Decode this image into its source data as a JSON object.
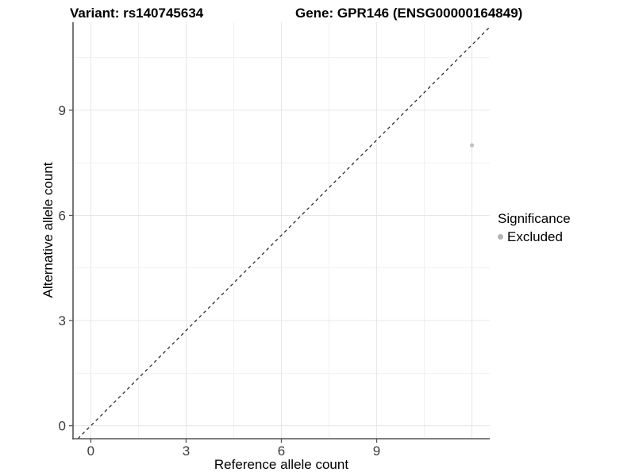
{
  "titles": {
    "variant": "Variant: rs140745634",
    "gene": "Gene: GPR146 (ENSG00000164849)"
  },
  "chart_data": {
    "type": "scatter",
    "xlabel": "Reference allele count",
    "ylabel": "Alternative allele count",
    "xlim": [
      -0.56,
      12.56
    ],
    "ylim": [
      -0.37,
      11.51
    ],
    "x_tick_labels": [
      "0",
      "3",
      "6",
      "9"
    ],
    "x_ticks": [
      0,
      3,
      6,
      9
    ],
    "y_tick_labels": [
      "0",
      "3",
      "6",
      "9"
    ],
    "y_ticks": [
      0,
      3,
      6,
      9
    ],
    "x_major_gridlines": [
      0,
      3,
      6,
      9,
      12
    ],
    "x_minor_gridlines": [
      1.5,
      4.5,
      7.5,
      10.5
    ],
    "y_major_gridlines": [
      0,
      3,
      6,
      9
    ],
    "y_minor_gridlines": [
      1.5,
      4.5,
      7.5,
      10.5
    ],
    "grid": true,
    "points": [
      {
        "x": 12,
        "y": 8,
        "series": "Excluded"
      }
    ],
    "abline": {
      "slope": 1,
      "intercept": 0,
      "style": "dashed"
    },
    "colors": {
      "point": "#c2c2c2",
      "legend_point": "#b3b3b3",
      "major_grid": "#e6e6e6",
      "minor_grid": "#f1f1f1",
      "axis_line": "#555555",
      "tick_label": "#3d3d3d",
      "abline": "#1a1a1a"
    }
  },
  "legend": {
    "title": "Significance",
    "position": "right",
    "items": [
      {
        "label": "Excluded",
        "color": "#b3b3b3"
      }
    ]
  }
}
